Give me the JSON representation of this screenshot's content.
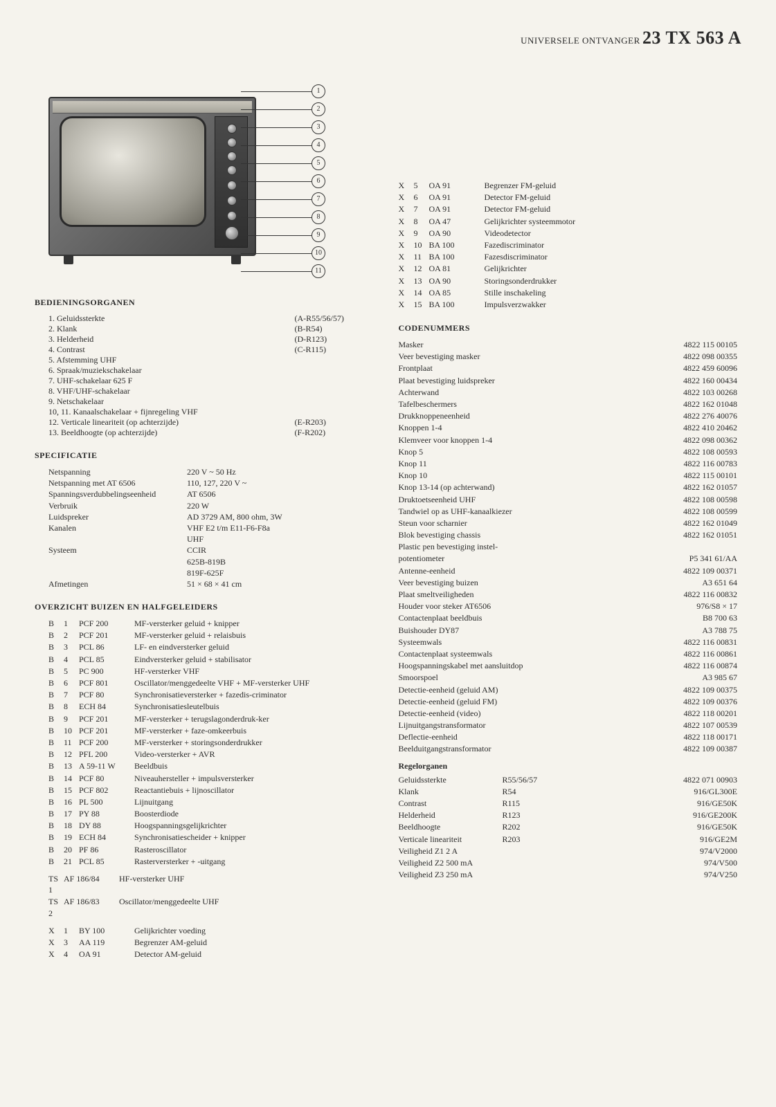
{
  "title": {
    "small": "UNIVERSELE ONTVANGER",
    "big": "23 TX 563 A"
  },
  "callouts": [
    "1",
    "2",
    "3",
    "4",
    "5",
    "6",
    "7",
    "8",
    "9",
    "10",
    "11"
  ],
  "sections": {
    "bedien": "BEDIENINGSORGANEN",
    "spec": "SPECIFICATIE",
    "buizen": "OVERZICHT BUIZEN EN HALFGELEIDERS",
    "coden": "CODENUMMERS",
    "regel": "Regelorganen"
  },
  "bedien_items": [
    {
      "n": "1.",
      "t": "Geluidssterkte",
      "r": "(A-R55/56/57)"
    },
    {
      "n": "2.",
      "t": "Klank",
      "r": "(B-R54)"
    },
    {
      "n": "3.",
      "t": "Helderheid",
      "r": "(D-R123)"
    },
    {
      "n": "4.",
      "t": "Contrast",
      "r": "(C-R115)"
    },
    {
      "n": "5.",
      "t": "Afstemming UHF",
      "r": ""
    },
    {
      "n": "6.",
      "t": "Spraak/muziekschakelaar",
      "r": ""
    },
    {
      "n": "7.",
      "t": "UHF-schakelaar 625 F",
      "r": ""
    },
    {
      "n": "8.",
      "t": "VHF/UHF-schakelaar",
      "r": ""
    },
    {
      "n": "9.",
      "t": "Netschakelaar",
      "r": ""
    },
    {
      "n": "10, 11.",
      "t": "Kanaalschakelaar + fijnregeling VHF",
      "r": ""
    },
    {
      "n": "12.",
      "t": "Verticale lineariteit (op achterzijde)",
      "r": "(E-R203)"
    },
    {
      "n": "13.",
      "t": "Beeldhoogte (op achterzijde)",
      "r": "(F-R202)"
    }
  ],
  "spec_rows": [
    {
      "l": "Netspanning",
      "r": "220 V ~ 50 Hz"
    },
    {
      "l": "Netspanning met AT 6506",
      "r": "110, 127, 220 V ~"
    },
    {
      "l": "Spanningsverdubbelingseenheid",
      "r": "AT 6506"
    },
    {
      "l": "Verbruik",
      "r": "220 W"
    },
    {
      "l": "Luidspreker",
      "r": "AD 3729 AM, 800 ohm, 3W"
    },
    {
      "l": "Kanalen",
      "r": "VHF E2 t/m E11-F6-F8a"
    },
    {
      "l": "",
      "r": "UHF"
    },
    {
      "l": "Systeem",
      "r": "CCIR"
    },
    {
      "l": "",
      "r": "625B-819B"
    },
    {
      "l": "",
      "r": "819F-625F"
    },
    {
      "l": "Afmetingen",
      "r": "51 × 68 × 41 cm"
    }
  ],
  "tubes": [
    {
      "a": "B",
      "b": "1",
      "c": "PCF 200",
      "d": "MF-versterker geluid + knipper"
    },
    {
      "a": "B",
      "b": "2",
      "c": "PCF 201",
      "d": "MF-versterker geluid + relaisbuis"
    },
    {
      "a": "B",
      "b": "3",
      "c": "PCL 86",
      "d": "LF- en eindversterker geluid"
    },
    {
      "a": "B",
      "b": "4",
      "c": "PCL 85",
      "d": "Eindversterker geluid + stabilisator"
    },
    {
      "a": "B",
      "b": "5",
      "c": "PC 900",
      "d": "HF-versterker VHF"
    },
    {
      "a": "B",
      "b": "6",
      "c": "PCF 801",
      "d": "Oscillator/menggedeelte VHF + MF-versterker UHF"
    },
    {
      "a": "B",
      "b": "7",
      "c": "PCF 80",
      "d": "Synchronisatieversterker + fazedis-criminator"
    },
    {
      "a": "B",
      "b": "8",
      "c": "ECH 84",
      "d": "Synchronisatiesleutelbuis"
    },
    {
      "a": "B",
      "b": "9",
      "c": "PCF 201",
      "d": "MF-versterker + terugslagonderdruk-ker"
    },
    {
      "a": "B",
      "b": "10",
      "c": "PCF 201",
      "d": "MF-versterker + faze-omkeerbuis"
    },
    {
      "a": "B",
      "b": "11",
      "c": "PCF 200",
      "d": "MF-versterker + storingsonderdrukker"
    },
    {
      "a": "B",
      "b": "12",
      "c": "PFL 200",
      "d": "Video-versterker + AVR"
    },
    {
      "a": "B",
      "b": "13",
      "c": "A 59-11 W",
      "d": "Beeldbuis"
    },
    {
      "a": "B",
      "b": "14",
      "c": "PCF 80",
      "d": "Niveauhersteller + impulsversterker"
    },
    {
      "a": "B",
      "b": "15",
      "c": "PCF 802",
      "d": "Reactantiebuis + lijnoscillator"
    },
    {
      "a": "B",
      "b": "16",
      "c": "PL 500",
      "d": "Lijnuitgang"
    },
    {
      "a": "B",
      "b": "17",
      "c": "PY 88",
      "d": "Boosterdiode"
    },
    {
      "a": "B",
      "b": "18",
      "c": "DY 88",
      "d": "Hoogspanningsgelijkrichter"
    },
    {
      "a": "B",
      "b": "19",
      "c": "ECH 84",
      "d": "Synchronisatiescheider + knipper"
    },
    {
      "a": "B",
      "b": "20",
      "c": "PF 86",
      "d": "Rasteroscillator"
    },
    {
      "a": "B",
      "b": "21",
      "c": "PCL 85",
      "d": "Rasterversterker + -uitgang"
    }
  ],
  "tubes2": [
    {
      "a": "TS 1",
      "c": "AF 186/84",
      "d": "HF-versterker UHF"
    },
    {
      "a": "TS 2",
      "c": "AF 186/83",
      "d": "Oscillator/menggedeelte UHF"
    }
  ],
  "tubes3": [
    {
      "a": "X",
      "b": "1",
      "c": "BY 100",
      "d": "Gelijkrichter voeding"
    },
    {
      "a": "X",
      "b": "3",
      "c": "AA 119",
      "d": "Begrenzer AM-geluid"
    },
    {
      "a": "X",
      "b": "4",
      "c": "OA 91",
      "d": "Detector AM-geluid"
    }
  ],
  "tubes_right": [
    {
      "a": "X",
      "b": "5",
      "c": "OA 91",
      "d": "Begrenzer FM-geluid"
    },
    {
      "a": "X",
      "b": "6",
      "c": "OA 91",
      "d": "Detector FM-geluid"
    },
    {
      "a": "X",
      "b": "7",
      "c": "OA 91",
      "d": "Detector FM-geluid"
    },
    {
      "a": "X",
      "b": "8",
      "c": "OA 47",
      "d": "Gelijkrichter systeemmotor"
    },
    {
      "a": "X",
      "b": "9",
      "c": "OA 90",
      "d": "Videodetector"
    },
    {
      "a": "X",
      "b": "10",
      "c": "BA 100",
      "d": "Fazediscriminator"
    },
    {
      "a": "X",
      "b": "11",
      "c": "BA 100",
      "d": "Fazesdiscriminator"
    },
    {
      "a": "X",
      "b": "12",
      "c": "OA 81",
      "d": "Gelijkrichter"
    },
    {
      "a": "X",
      "b": "13",
      "c": "OA 90",
      "d": "Storingsonderdrukker"
    },
    {
      "a": "X",
      "b": "14",
      "c": "OA 85",
      "d": "Stille inschakeling"
    },
    {
      "a": "X",
      "b": "15",
      "c": "BA 100",
      "d": "Impulsverzwakker"
    }
  ],
  "coden": [
    {
      "l": "Masker",
      "r": "4822 115 00105"
    },
    {
      "l": "Veer bevestiging masker",
      "r": "4822 098 00355"
    },
    {
      "l": "Frontplaat",
      "r": "4822 459 60096"
    },
    {
      "l": "Plaat bevestiging luidspreker",
      "r": "4822 160 00434"
    },
    {
      "l": "Achterwand",
      "r": "4822 103 00268"
    },
    {
      "l": "Tafelbeschermers",
      "r": "4822 162 01048"
    },
    {
      "l": "Drukknoppeneenheid",
      "r": "4822 276 40076"
    },
    {
      "l": "Knoppen 1-4",
      "r": "4822 410 20462"
    },
    {
      "l": "Klemveer voor knoppen 1-4",
      "r": "4822 098 00362"
    },
    {
      "l": "Knop 5",
      "r": "4822 108 00593"
    },
    {
      "l": "Knop 11",
      "r": "4822 116 00783"
    },
    {
      "l": "Knop 10",
      "r": "4822 115 00101"
    },
    {
      "l": "Knop 13-14 (op achterwand)",
      "r": "4822 162 01057"
    },
    {
      "l": "Druktoetseenheid UHF",
      "r": "4822 108 00598"
    },
    {
      "l": "Tandwiel op as UHF-kanaalkiezer",
      "r": "4822 108 00599"
    },
    {
      "l": "Steun voor scharnier",
      "r": "4822 162 01049"
    },
    {
      "l": "Blok bevestiging chassis",
      "r": "4822 162 01051"
    },
    {
      "l": "Plastic pen bevestiging instel-",
      "r": ""
    },
    {
      "l": "potentiometer",
      "r": "P5 341 61/AA"
    },
    {
      "l": "Antenne-eenheid",
      "r": "4822 109 00371"
    },
    {
      "l": "Veer bevestiging buizen",
      "r": "A3 651 64"
    },
    {
      "l": "Plaat smeltveiligheden",
      "r": "4822 116 00832"
    },
    {
      "l": "Houder voor steker AT6506",
      "r": "976/S8 × 17"
    },
    {
      "l": "Contactenplaat beeldbuis",
      "r": "B8 700 63"
    },
    {
      "l": "Buishouder DY87",
      "r": "A3 788 75"
    },
    {
      "l": "Systeemwals",
      "r": "4822 116 00831"
    },
    {
      "l": "Contactenplaat systeemwals",
      "r": "4822 116 00861"
    },
    {
      "l": "Hoogspanningskabel met aansluitdop",
      "r": "4822 116 00874"
    },
    {
      "l": "Smoorspoel",
      "r": "A3 985 67"
    },
    {
      "l": "Detectie-eenheid (geluid AM)",
      "r": "4822 109 00375"
    },
    {
      "l": "Detectie-eenheid (geluid FM)",
      "r": "4822 109 00376"
    },
    {
      "l": "Detectie-eenheid (video)",
      "r": "4822 118 00201"
    },
    {
      "l": "Lijnuitgangstransformator",
      "r": "4822 107 00539"
    },
    {
      "l": "Deflectie-eenheid",
      "r": "4822 118 00171"
    },
    {
      "l": "Beelduitgangstransformator",
      "r": "4822 109 00387"
    }
  ],
  "regel": [
    {
      "l": "Geluidssterkte",
      "m": "R55/56/57",
      "r": "4822 071 00903"
    },
    {
      "l": "Klank",
      "m": "R54",
      "r": "916/GL300E"
    },
    {
      "l": "Contrast",
      "m": "R115",
      "r": "916/GE50K"
    },
    {
      "l": "Helderheid",
      "m": "R123",
      "r": "916/GE200K"
    },
    {
      "l": "Beeldhoogte",
      "m": "R202",
      "r": "916/GE50K"
    },
    {
      "l": "Verticale lineariteit",
      "m": "R203",
      "r": "916/GE2M"
    },
    {
      "l": "Veiligheid Z1   2   A",
      "m": "",
      "r": "974/V2000"
    },
    {
      "l": "Veiligheid Z2 500 mA",
      "m": "",
      "r": "974/V500"
    },
    {
      "l": "Veiligheid Z3 250 mA",
      "m": "",
      "r": "974/V250"
    }
  ]
}
